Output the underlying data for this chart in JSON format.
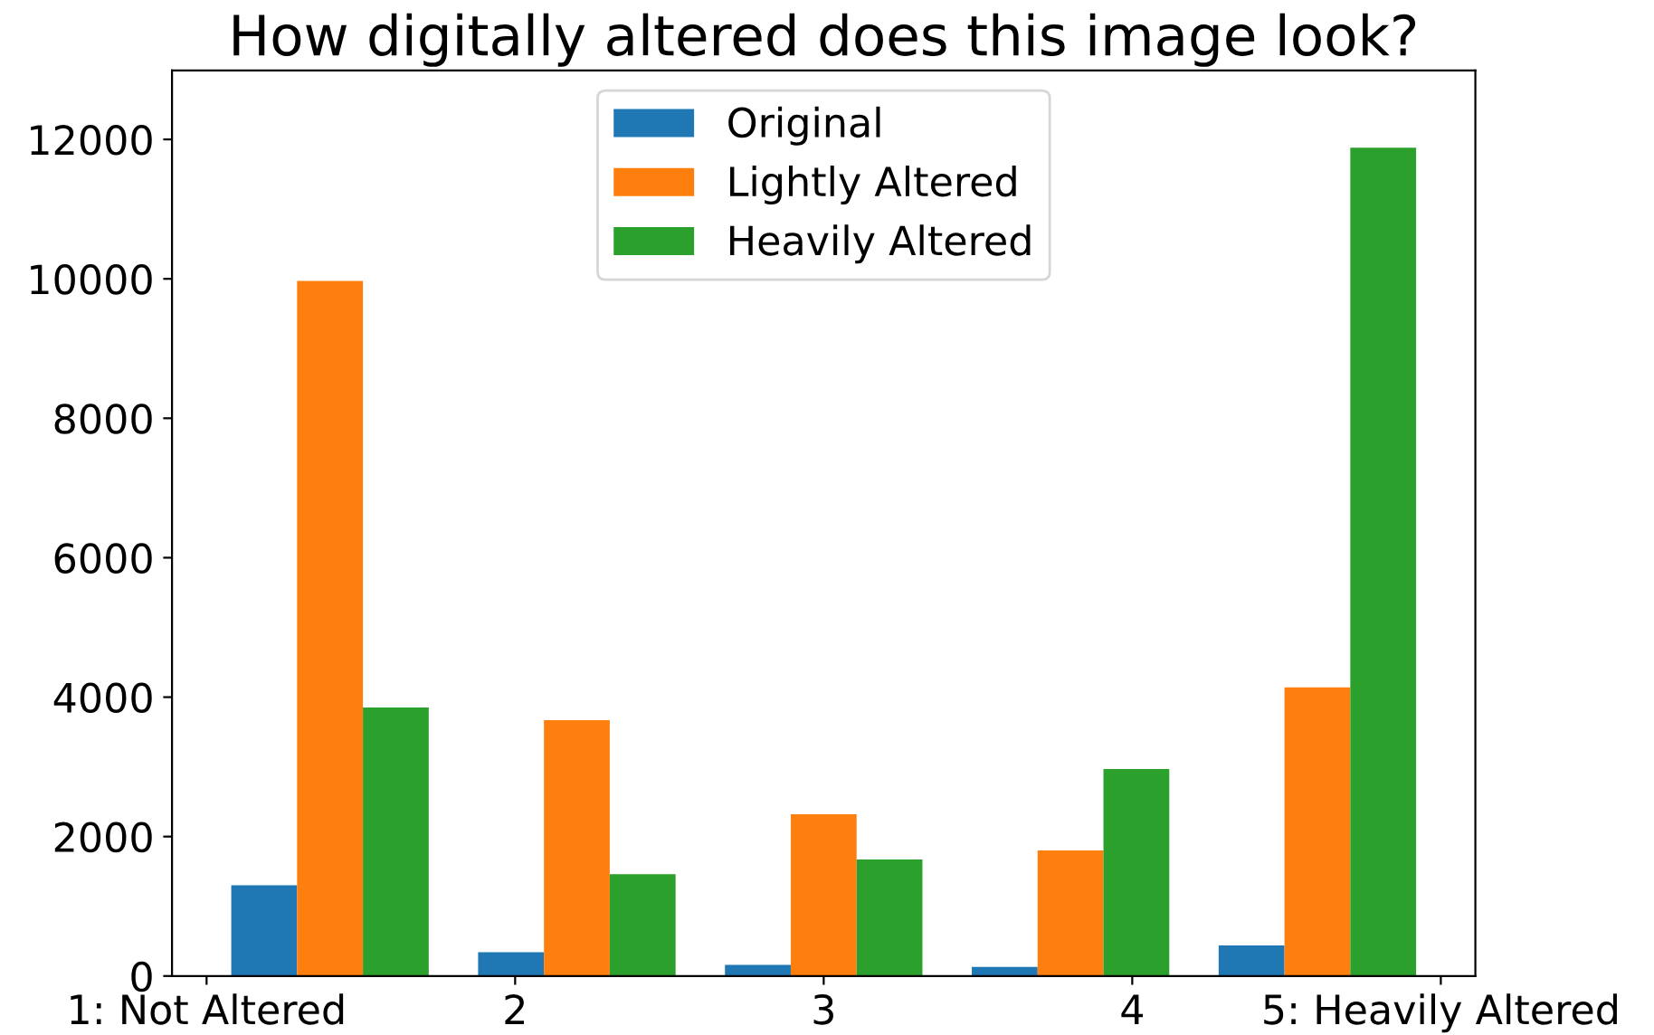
{
  "chart_data": {
    "type": "histogram",
    "title": "How digitally altered does this image look?",
    "bins": [
      1,
      1.8,
      2.6,
      3.4,
      4.2,
      5
    ],
    "series": [
      {
        "name": "Original",
        "color": "#1f77b4",
        "values": [
          1300,
          340,
          160,
          130,
          440
        ]
      },
      {
        "name": "Lightly Altered",
        "color": "#ff7f0e",
        "values": [
          9970,
          3670,
          2320,
          1800,
          4140
        ]
      },
      {
        "name": "Heavily Altered",
        "color": "#2ca02c",
        "values": [
          3850,
          1460,
          1670,
          2970,
          11880
        ]
      }
    ],
    "xlim": [
      0.888,
      5.112
    ],
    "xticks": [
      {
        "value": 1,
        "label": "1: Not Altered"
      },
      2,
      3,
      4,
      {
        "value": 5,
        "label": "5: Heavily Altered"
      }
    ],
    "ylim": [
      0,
      12990
    ],
    "yticks": [
      0,
      2000,
      4000,
      6000,
      8000,
      10000,
      12000
    ],
    "grid": false,
    "legend": "top"
  }
}
